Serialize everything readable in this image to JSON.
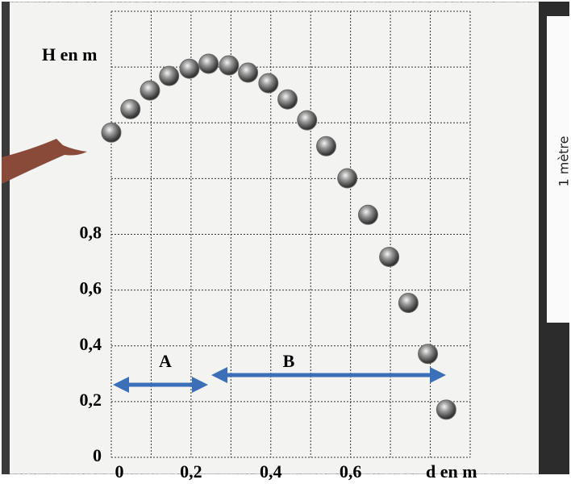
{
  "chart_data": {
    "type": "scatter",
    "y_label": "H en m",
    "x_label": "d en m",
    "annotations": {
      "a": "A",
      "b": "B",
      "ruler": "1 mètre"
    },
    "x": [
      0,
      0.048,
      0.097,
      0.145,
      0.196,
      0.244,
      0.295,
      0.343,
      0.394,
      0.442,
      0.491,
      0.539,
      0.592,
      0.644,
      0.697,
      0.745,
      0.794,
      0.84
    ],
    "values": [
      1.165,
      1.249,
      1.316,
      1.368,
      1.394,
      1.412,
      1.406,
      1.38,
      1.342,
      1.284,
      1.209,
      1.116,
      1.001,
      0.87,
      0.719,
      0.554,
      0.371,
      0.171
    ],
    "color": "#6a6a6a",
    "xlim": [
      0,
      0.9
    ],
    "ylim": [
      0,
      1.6
    ],
    "xticks": [
      0,
      {
        "value": 0.2,
        "label": "0,2"
      },
      {
        "value": 0.4,
        "label": "0,4"
      },
      {
        "value": 0.6,
        "label": "0,6"
      }
    ],
    "yticks": [
      0,
      {
        "value": 0.2,
        "label": "0,2"
      },
      {
        "value": 0.4,
        "label": "0,4"
      },
      {
        "value": 0.6,
        "label": "0,6"
      },
      {
        "value": 0.8,
        "label": "0,8"
      }
    ],
    "xgrid": [
      0,
      0.1,
      0.2,
      0.3,
      0.4,
      0.5,
      0.6,
      0.7,
      0.8,
      0.9
    ],
    "ygrid": [
      0,
      0.2,
      0.4,
      0.6,
      0.8,
      1,
      1.2,
      1.4,
      1.6
    ],
    "grid": true
  }
}
